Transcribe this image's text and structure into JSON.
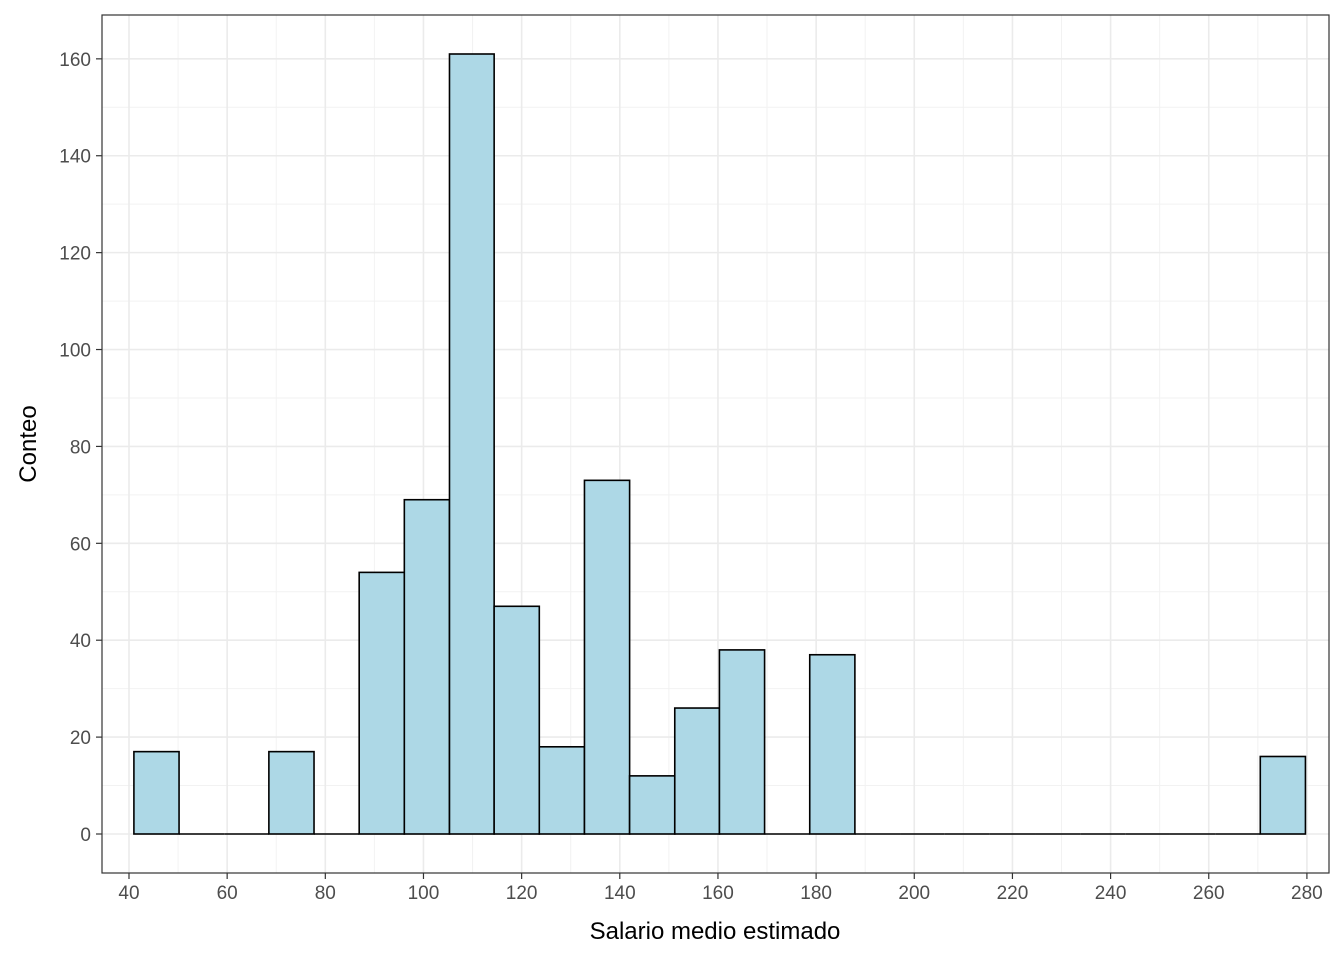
{
  "chart_data": {
    "type": "bar",
    "subtype": "histogram",
    "xlabel": "Salario medio estimado",
    "ylabel": "Conteo",
    "xlim": [
      34.5,
      284.5
    ],
    "ylim": [
      -8.05,
      169.05
    ],
    "x_ticks": [
      40,
      60,
      80,
      100,
      120,
      140,
      160,
      180,
      200,
      220,
      240,
      260,
      280
    ],
    "y_ticks": [
      0,
      20,
      40,
      60,
      80,
      100,
      120,
      140,
      160
    ],
    "grid": true,
    "legend": "none",
    "bar_fill": "#ADD8E6",
    "bar_stroke": "#000000",
    "bins": [
      {
        "x0": 41.0,
        "x1": 50.2,
        "count": 17
      },
      {
        "x0": 50.2,
        "x1": 59.4,
        "count": 0
      },
      {
        "x0": 59.4,
        "x1": 68.5,
        "count": 0
      },
      {
        "x0": 68.5,
        "x1": 77.7,
        "count": 17
      },
      {
        "x0": 77.7,
        "x1": 86.9,
        "count": 0
      },
      {
        "x0": 86.9,
        "x1": 96.1,
        "count": 54
      },
      {
        "x0": 96.1,
        "x1": 105.3,
        "count": 69
      },
      {
        "x0": 105.3,
        "x1": 114.4,
        "count": 161
      },
      {
        "x0": 114.4,
        "x1": 123.6,
        "count": 47
      },
      {
        "x0": 123.6,
        "x1": 132.8,
        "count": 18
      },
      {
        "x0": 132.8,
        "x1": 142.0,
        "count": 73
      },
      {
        "x0": 142.0,
        "x1": 151.2,
        "count": 12
      },
      {
        "x0": 151.2,
        "x1": 160.3,
        "count": 26
      },
      {
        "x0": 160.3,
        "x1": 169.5,
        "count": 38
      },
      {
        "x0": 169.5,
        "x1": 178.7,
        "count": 0
      },
      {
        "x0": 178.7,
        "x1": 187.9,
        "count": 37
      },
      {
        "x0": 187.9,
        "x1": 197.1,
        "count": 0
      },
      {
        "x0": 197.1,
        "x1": 206.2,
        "count": 0
      },
      {
        "x0": 206.2,
        "x1": 215.4,
        "count": 0
      },
      {
        "x0": 215.4,
        "x1": 224.6,
        "count": 0
      },
      {
        "x0": 224.6,
        "x1": 233.8,
        "count": 0
      },
      {
        "x0": 233.8,
        "x1": 243.0,
        "count": 0
      },
      {
        "x0": 243.0,
        "x1": 252.1,
        "count": 0
      },
      {
        "x0": 252.1,
        "x1": 261.3,
        "count": 0
      },
      {
        "x0": 261.3,
        "x1": 270.5,
        "count": 0
      },
      {
        "x0": 270.5,
        "x1": 279.7,
        "count": 16
      }
    ]
  }
}
